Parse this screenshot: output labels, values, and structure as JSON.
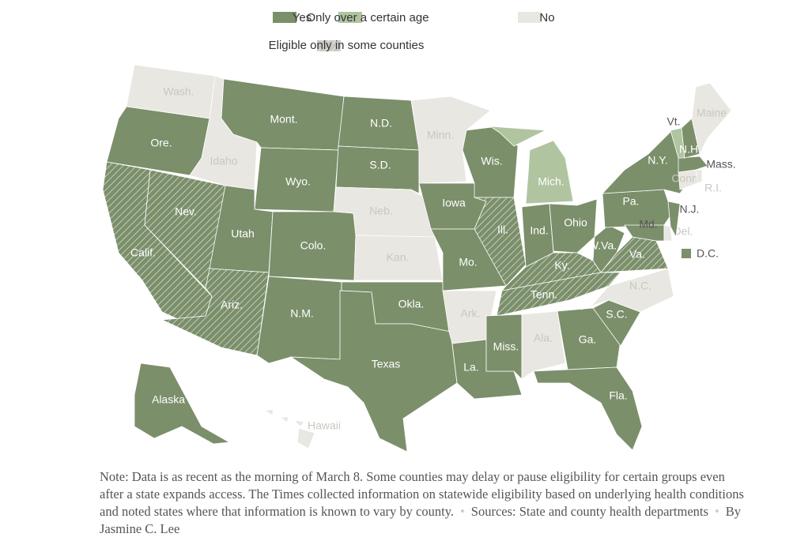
{
  "legend": {
    "yes": "Yes",
    "age": "Only over a certain age",
    "no": "No",
    "partial": "Eligible only in some counties"
  },
  "colors": {
    "yes": "#7b8f6a",
    "age": "#b0c4a0",
    "no": "#e9e7e1"
  },
  "states": [
    {
      "label": "Wash.",
      "status": "no"
    },
    {
      "label": "Ore.",
      "status": "yes"
    },
    {
      "label": "Calif.",
      "status": "yes",
      "partial": true
    },
    {
      "label": "Nev.",
      "status": "yes",
      "partial": true
    },
    {
      "label": "Idaho",
      "status": "no"
    },
    {
      "label": "Mont.",
      "status": "yes"
    },
    {
      "label": "Wyo.",
      "status": "yes"
    },
    {
      "label": "Utah",
      "status": "yes"
    },
    {
      "label": "Colo.",
      "status": "yes"
    },
    {
      "label": "Ariz.",
      "status": "yes",
      "partial": true
    },
    {
      "label": "N.M.",
      "status": "yes"
    },
    {
      "label": "N.D.",
      "status": "yes"
    },
    {
      "label": "S.D.",
      "status": "yes"
    },
    {
      "label": "Neb.",
      "status": "no"
    },
    {
      "label": "Kan.",
      "status": "no"
    },
    {
      "label": "Okla.",
      "status": "yes"
    },
    {
      "label": "Texas",
      "status": "yes"
    },
    {
      "label": "Minn.",
      "status": "no"
    },
    {
      "label": "Iowa",
      "status": "yes"
    },
    {
      "label": "Mo.",
      "status": "yes"
    },
    {
      "label": "Ark.",
      "status": "no"
    },
    {
      "label": "La.",
      "status": "yes"
    },
    {
      "label": "Wis.",
      "status": "yes"
    },
    {
      "label": "Ill.",
      "status": "yes",
      "partial": true
    },
    {
      "label": "Mich.",
      "status": "age"
    },
    {
      "label": "Ind.",
      "status": "yes"
    },
    {
      "label": "Ohio",
      "status": "yes"
    },
    {
      "label": "Ky.",
      "status": "yes",
      "partial": true
    },
    {
      "label": "Tenn.",
      "status": "yes",
      "partial": true
    },
    {
      "label": "Miss.",
      "status": "yes"
    },
    {
      "label": "Ala.",
      "status": "no"
    },
    {
      "label": "Ga.",
      "status": "yes"
    },
    {
      "label": "Fla.",
      "status": "yes"
    },
    {
      "label": "S.C.",
      "status": "yes"
    },
    {
      "label": "N.C.",
      "status": "no"
    },
    {
      "label": "Va.",
      "status": "yes",
      "partial": true
    },
    {
      "label": "W.Va.",
      "status": "yes"
    },
    {
      "label": "Pa.",
      "status": "yes"
    },
    {
      "label": "N.Y.",
      "status": "yes"
    },
    {
      "label": "Md.",
      "status": "yes"
    },
    {
      "label": "Del.",
      "status": "no"
    },
    {
      "label": "N.J.",
      "status": "yes"
    },
    {
      "label": "Conn.",
      "status": "no"
    },
    {
      "label": "R.I.",
      "status": "no"
    },
    {
      "label": "Mass.",
      "status": "yes"
    },
    {
      "label": "Vt.",
      "status": "age"
    },
    {
      "label": "N.H.",
      "status": "yes"
    },
    {
      "label": "Maine",
      "status": "no"
    },
    {
      "label": "Alaska",
      "status": "yes"
    },
    {
      "label": "Hawaii",
      "status": "no"
    },
    {
      "label": "D.C.",
      "status": "yes"
    }
  ],
  "note": "Note: Data is as recent as the morning of March 8. Some counties may delay or pause eligibility for certain groups even after a state expands access. The Times collected information on statewide eligibility based on underlying health conditions and noted states where that information is known to vary by county.",
  "sources": "Sources: State and county health departments",
  "byline": "By Jasmine C. Lee"
}
